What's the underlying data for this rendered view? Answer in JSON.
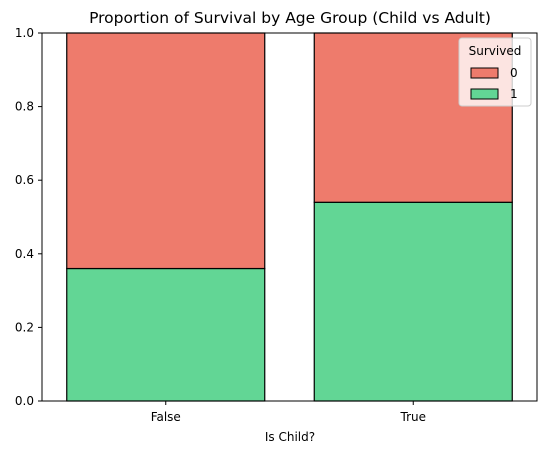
{
  "chart_data": {
    "type": "bar",
    "stacked": true,
    "normalized": true,
    "title": "Proportion of Survival by Age Group (Child vs Adult)",
    "xlabel": "Is Child?",
    "ylabel": "",
    "categories": [
      "False",
      "True"
    ],
    "ylim": [
      0,
      1
    ],
    "yticks": [
      "0.0",
      "0.2",
      "0.4",
      "0.6",
      "0.8",
      "1.0"
    ],
    "series": [
      {
        "name": "1",
        "values": [
          0.36,
          0.54
        ],
        "color": "#62d695"
      },
      {
        "name": "0",
        "values": [
          0.64,
          0.46
        ],
        "color": "#ee7b6c"
      }
    ],
    "legend": {
      "title": "Survived",
      "position": "top-right",
      "entries": [
        {
          "label": "0",
          "color": "#ee7b6c"
        },
        {
          "label": "1",
          "color": "#62d695"
        }
      ]
    },
    "grid": false
  }
}
